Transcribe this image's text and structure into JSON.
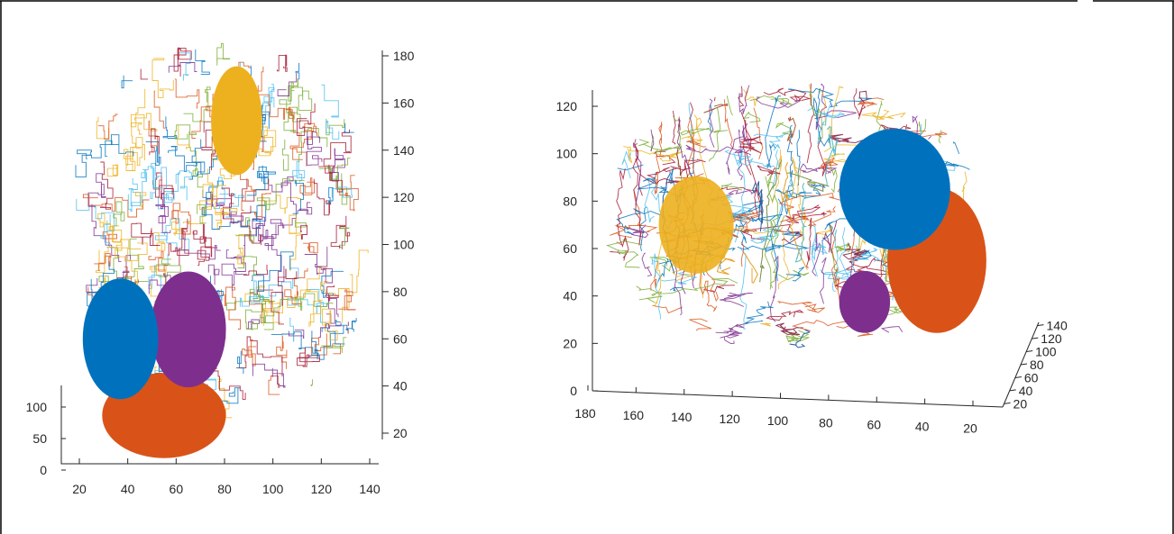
{
  "colors": {
    "frame": "#000000",
    "axis": "#262626",
    "region_blue": "#0072BD",
    "region_orange": "#D95319",
    "region_yellow": "#EDB120",
    "region_purple": "#7E2F8E",
    "streamline_palette": [
      "#0072BD",
      "#D95319",
      "#EDB120",
      "#7E2F8E",
      "#77AC30",
      "#4DBEEE",
      "#A2142F"
    ]
  },
  "chart_data": [
    {
      "type": "scatter",
      "view": "3d-axial",
      "title": "",
      "x_ticks": [
        "20",
        "40",
        "60",
        "80",
        "100",
        "120",
        "140"
      ],
      "y_ticks": [
        "20",
        "40",
        "60",
        "80",
        "100",
        "120",
        "140",
        "160",
        "180"
      ],
      "z_ticks": [
        "0",
        "50",
        "100"
      ],
      "xlim": [
        15,
        145
      ],
      "ylim": [
        10,
        185
      ],
      "zlim": [
        0,
        120
      ],
      "series": [
        {
          "color": "#0072BD",
          "x_range": [
            22,
            52
          ],
          "y_range": [
            35,
            85
          ]
        },
        {
          "color": "#D95319",
          "x_range": [
            30,
            80
          ],
          "y_range": [
            10,
            45
          ]
        },
        {
          "color": "#7E2F8E",
          "x_range": [
            50,
            80
          ],
          "y_range": [
            40,
            88
          ]
        },
        {
          "color": "#EDB120",
          "x_range": [
            75,
            95
          ],
          "y_range": [
            130,
            175
          ]
        }
      ]
    },
    {
      "type": "scatter",
      "view": "3d-sagittal",
      "title": "",
      "x_ticks": [
        "180",
        "160",
        "140",
        "120",
        "100",
        "80",
        "60",
        "40",
        "20"
      ],
      "y_ticks": [
        "20",
        "40",
        "60",
        "80",
        "100",
        "120",
        "140"
      ],
      "z_ticks": [
        "0",
        "20",
        "40",
        "60",
        "80",
        "100",
        "120"
      ],
      "xlim": [
        180,
        15
      ],
      "ylim": [
        15,
        145
      ],
      "zlim": [
        0,
        125
      ],
      "series": [
        {
          "color": "#0072BD",
          "x_range": [
            30,
            75
          ],
          "z_range": [
            60,
            110
          ]
        },
        {
          "color": "#D95319",
          "x_range": [
            15,
            55
          ],
          "z_range": [
            25,
            85
          ]
        },
        {
          "color": "#7E2F8E",
          "x_range": [
            55,
            75
          ],
          "z_range": [
            25,
            50
          ]
        },
        {
          "color": "#EDB120",
          "x_range": [
            120,
            150
          ],
          "z_range": [
            50,
            90
          ]
        }
      ]
    }
  ]
}
